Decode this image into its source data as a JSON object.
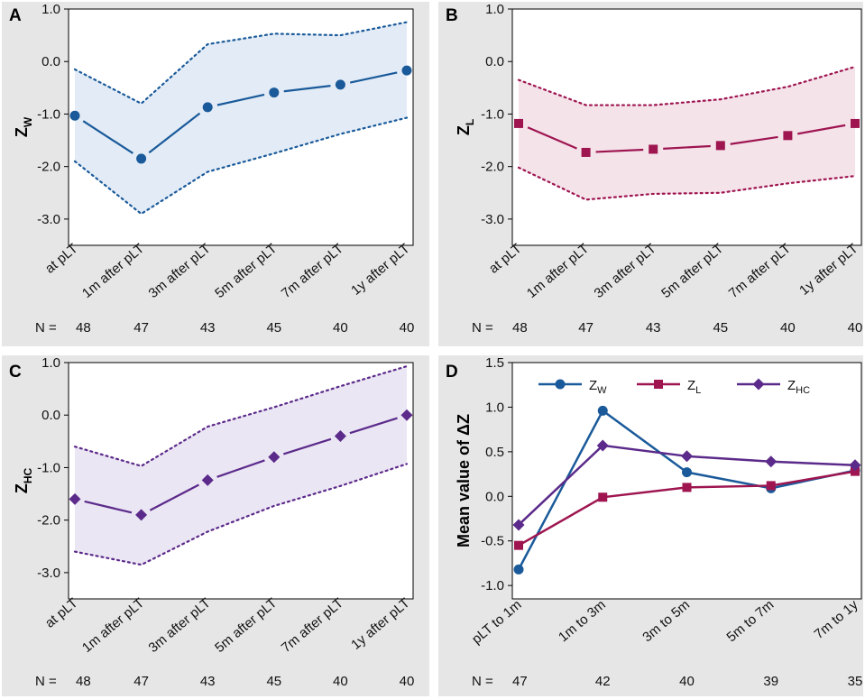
{
  "chart_data": [
    {
      "panel": "A",
      "type": "line",
      "ylabel": "Z",
      "ylabel_sub": "W",
      "color": "#1a5a9a",
      "band_color": "#e3ecf6",
      "marker": "circle",
      "categories": [
        "at pLT",
        "1m after pLT",
        "3m after pLT",
        "5m after pLT",
        "7m after pLT",
        "1y after pLT"
      ],
      "mean": [
        -1.03,
        -1.85,
        -0.87,
        -0.59,
        -0.44,
        -0.17
      ],
      "upper": [
        -0.15,
        -0.8,
        0.33,
        0.53,
        0.5,
        0.75
      ],
      "lower": [
        -1.9,
        -2.9,
        -2.1,
        -1.75,
        -1.38,
        -1.07
      ],
      "yticks": [
        "1.0",
        "0.0",
        "-1.0",
        "-2.0",
        "-3.0"
      ],
      "ylim": [
        -3.5,
        1.0
      ],
      "n_label": "N =",
      "n": [
        "48",
        "47",
        "43",
        "45",
        "40",
        "40"
      ]
    },
    {
      "panel": "B",
      "type": "line",
      "ylabel": "Z",
      "ylabel_sub": "L",
      "color": "#9e1550",
      "band_color": "#f5e3ea",
      "marker": "square",
      "categories": [
        "at pLT",
        "1m after pLT",
        "3m after pLT",
        "5m after pLT",
        "7m after pLT",
        "1y after pLT"
      ],
      "mean": [
        -1.18,
        -1.73,
        -1.67,
        -1.6,
        -1.41,
        -1.18
      ],
      "upper": [
        -0.35,
        -0.83,
        -0.83,
        -0.72,
        -0.48,
        -0.1
      ],
      "lower": [
        -2.02,
        -2.63,
        -2.52,
        -2.5,
        -2.32,
        -2.18
      ],
      "yticks": [
        "1.0",
        "0.0",
        "-1.0",
        "-2.0",
        "-3.0"
      ],
      "ylim": [
        -3.5,
        1.0
      ],
      "n_label": "N =",
      "n": [
        "48",
        "47",
        "43",
        "45",
        "40",
        "40"
      ]
    },
    {
      "panel": "C",
      "type": "line",
      "ylabel": "Z",
      "ylabel_sub": "HC",
      "color": "#5b2a8a",
      "band_color": "#ebe6f4",
      "marker": "diamond",
      "categories": [
        "at pLT",
        "1m after pLT",
        "3m after pLT",
        "5m after pLT",
        "7m after pLT",
        "1y after pLT"
      ],
      "mean": [
        -1.6,
        -1.9,
        -1.24,
        -0.8,
        -0.4,
        0.0
      ],
      "upper": [
        -0.6,
        -0.97,
        -0.22,
        0.15,
        0.55,
        0.93
      ],
      "lower": [
        -2.6,
        -2.85,
        -2.22,
        -1.73,
        -1.35,
        -0.93
      ],
      "yticks": [
        "1.0",
        "0.0",
        "-1.0",
        "-2.0",
        "-3.0"
      ],
      "ylim": [
        -3.5,
        1.0
      ],
      "n_label": "N =",
      "n": [
        "48",
        "47",
        "43",
        "45",
        "40",
        "40"
      ]
    },
    {
      "panel": "D",
      "type": "line",
      "ylabel": "Mean value of ΔZ",
      "categories": [
        "pLT to 1m",
        "1m to 3m",
        "3m to 5m",
        "5m to 7m",
        "7m to 1y"
      ],
      "series": [
        {
          "name": "Z",
          "sub": "W",
          "color": "#1a5a9a",
          "marker": "circle",
          "values": [
            -0.82,
            0.96,
            0.27,
            0.09,
            0.29
          ]
        },
        {
          "name": "Z",
          "sub": "L",
          "color": "#9e1550",
          "marker": "square",
          "values": [
            -0.55,
            -0.01,
            0.1,
            0.12,
            0.28
          ]
        },
        {
          "name": "Z",
          "sub": "HC",
          "color": "#5b2a8a",
          "marker": "diamond",
          "values": [
            -0.32,
            0.57,
            0.45,
            0.39,
            0.35
          ]
        }
      ],
      "yticks": [
        "1.5",
        "1.0",
        "0.5",
        "0.0",
        "-0.5",
        "-1.0"
      ],
      "ylim": [
        -1.15,
        1.5
      ],
      "n_label": "N =",
      "n": [
        "47",
        "42",
        "40",
        "39",
        "35"
      ]
    }
  ]
}
